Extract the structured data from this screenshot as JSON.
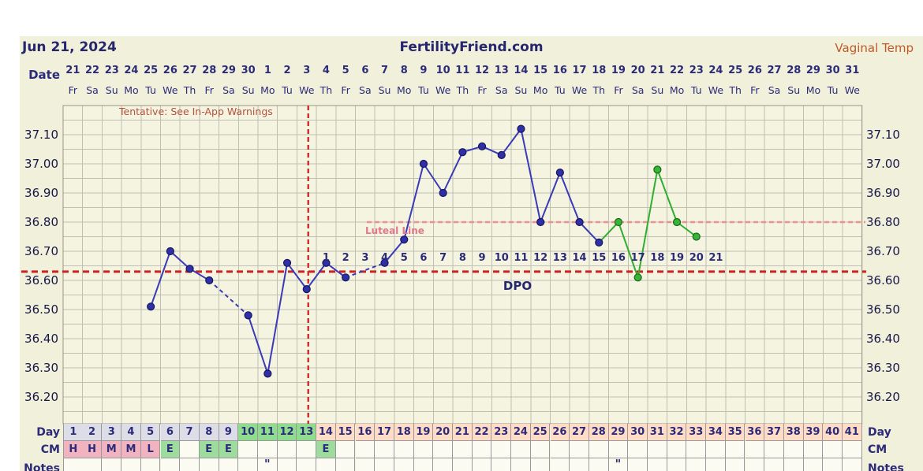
{
  "page": {
    "header": {
      "report_date": "Jun 21, 2024",
      "site_title": "FertilityFriend.com",
      "chart_type": "Vaginal Temp"
    },
    "labels": {
      "date_row": "Date",
      "day_row": "Day",
      "cm_row": "CM",
      "notes_row": "Notes",
      "dpo": "DPO",
      "tentative_warning": "Tentative: See In-App Warnings",
      "luteal_line": "Luteal Line"
    }
  },
  "colors": {
    "panel_bg": "#f1f0da",
    "plot_bg": "#f5f4e0",
    "grid": "#bfbfb3",
    "plot_border": "#999488",
    "navy_text": "#2b2b7a",
    "temp_line_blue": "#3a3ab8",
    "temp_dot_blue": "#2f2fa8",
    "temp_dot_blue_stroke": "#16165e",
    "temp_line_green": "#2fae2f",
    "temp_dot_green": "#38b438",
    "temp_dot_green_stroke": "#156815",
    "coverline_red": "#cc2222",
    "ovulation_line_red": "#cc3333",
    "luteal_line_pink": "#ee8f8f",
    "luteal_label_pink": "#e0788f",
    "tentative_red": "#b5503c",
    "type_label_orange": "#c05a28",
    "phase_pre_bg": "#dcdde7",
    "phase_fertile_bg": "#8fdc8f",
    "phase_luteal_bg": "#ffdcc6",
    "cm_menses_bg": "#f2b3c0",
    "cm_eggwhite_bg": "#9edc9e",
    "cell_empty_bg": "#fbfbf2",
    "cell_border": "#999999"
  },
  "chart_data": {
    "type": "line",
    "title": "Basal body temperature cycle chart",
    "ylim": [
      36.15,
      37.2
    ],
    "minor_step": 0.05,
    "y_axis": {
      "ticks": [
        "37.10",
        "37.00",
        "36.90",
        "36.80",
        "36.70",
        "36.60",
        "36.50",
        "36.40",
        "36.30",
        "36.20"
      ]
    },
    "x_axis": {
      "dates": [
        "21",
        "22",
        "23",
        "24",
        "25",
        "26",
        "27",
        "28",
        "29",
        "30",
        "1",
        "2",
        "3",
        "4",
        "5",
        "6",
        "7",
        "8",
        "9",
        "10",
        "11",
        "12",
        "13",
        "14",
        "15",
        "16",
        "17",
        "18",
        "19",
        "20",
        "21",
        "22",
        "23",
        "24",
        "25",
        "26",
        "27",
        "28",
        "29",
        "30",
        "31"
      ],
      "weekdays": [
        "Fr",
        "Sa",
        "Su",
        "Mo",
        "Tu",
        "We",
        "Th",
        "Fr",
        "Sa",
        "Su",
        "Mo",
        "Tu",
        "We",
        "Th",
        "Fr",
        "Sa",
        "Su",
        "Mo",
        "Tu",
        "We",
        "Th",
        "Fr",
        "Sa",
        "Su",
        "Mo",
        "Tu",
        "We",
        "Th",
        "Fr",
        "Sa",
        "Su",
        "Mo",
        "Tu",
        "We",
        "Th",
        "Fr",
        "Sa",
        "Su",
        "Mo",
        "Tu",
        "We"
      ],
      "cycle_days": [
        "1",
        "2",
        "3",
        "4",
        "5",
        "6",
        "7",
        "8",
        "9",
        "10",
        "11",
        "12",
        "13",
        "14",
        "15",
        "16",
        "17",
        "18",
        "19",
        "20",
        "21",
        "22",
        "23",
        "24",
        "25",
        "26",
        "27",
        "28",
        "29",
        "30",
        "31",
        "32",
        "33",
        "34",
        "35",
        "36",
        "37",
        "38",
        "39",
        "40",
        "41"
      ]
    },
    "temps": [
      {
        "day": 5,
        "temp": 36.51,
        "series": "blue"
      },
      {
        "day": 6,
        "temp": 36.7,
        "series": "blue"
      },
      {
        "day": 7,
        "temp": 36.64,
        "series": "blue"
      },
      {
        "day": 8,
        "temp": 36.6,
        "series": "blue"
      },
      {
        "day": 10,
        "temp": 36.48,
        "series": "blue"
      },
      {
        "day": 11,
        "temp": 36.28,
        "series": "blue"
      },
      {
        "day": 12,
        "temp": 36.66,
        "series": "blue"
      },
      {
        "day": 13,
        "temp": 36.57,
        "series": "blue"
      },
      {
        "day": 14,
        "temp": 36.66,
        "series": "blue"
      },
      {
        "day": 15,
        "temp": 36.61,
        "series": "blue"
      },
      {
        "day": 17,
        "temp": 36.66,
        "series": "blue"
      },
      {
        "day": 18,
        "temp": 36.74,
        "series": "blue"
      },
      {
        "day": 19,
        "temp": 37.0,
        "series": "blue"
      },
      {
        "day": 20,
        "temp": 36.9,
        "series": "blue"
      },
      {
        "day": 21,
        "temp": 37.04,
        "series": "blue"
      },
      {
        "day": 22,
        "temp": 37.06,
        "series": "blue"
      },
      {
        "day": 23,
        "temp": 37.03,
        "series": "blue"
      },
      {
        "day": 24,
        "temp": 37.12,
        "series": "blue"
      },
      {
        "day": 25,
        "temp": 36.8,
        "series": "blue"
      },
      {
        "day": 26,
        "temp": 36.97,
        "series": "blue"
      },
      {
        "day": 27,
        "temp": 36.8,
        "series": "blue"
      },
      {
        "day": 28,
        "temp": 36.73,
        "series": "blue"
      },
      {
        "day": 29,
        "temp": 36.8,
        "series": "green"
      },
      {
        "day": 30,
        "temp": 36.61,
        "series": "green"
      },
      {
        "day": 31,
        "temp": 36.98,
        "series": "green"
      },
      {
        "day": 32,
        "temp": 36.8,
        "series": "green"
      },
      {
        "day": 33,
        "temp": 36.75,
        "series": "green"
      }
    ],
    "coverline_temp": 36.63,
    "luteal_line_temp": 36.8,
    "ovulation_after_day": 13,
    "dpo": {
      "start_cycle_day": 14,
      "numbers": [
        "1",
        "2",
        "3",
        "4",
        "5",
        "6",
        "7",
        "8",
        "9",
        "10",
        "11",
        "12",
        "13",
        "14",
        "15",
        "16",
        "17",
        "18",
        "19",
        "20",
        "21"
      ]
    },
    "cm_row": [
      {
        "day": 1,
        "value": "H",
        "kind": "menses"
      },
      {
        "day": 2,
        "value": "H",
        "kind": "menses"
      },
      {
        "day": 3,
        "value": "M",
        "kind": "menses"
      },
      {
        "day": 4,
        "value": "M",
        "kind": "menses"
      },
      {
        "day": 5,
        "value": "L",
        "kind": "menses"
      },
      {
        "day": 6,
        "value": "E",
        "kind": "eggwhite"
      },
      {
        "day": 8,
        "value": "E",
        "kind": "eggwhite"
      },
      {
        "day": 9,
        "value": "E",
        "kind": "eggwhite"
      },
      {
        "day": 14,
        "value": "E",
        "kind": "eggwhite"
      }
    ],
    "day_phases": [
      {
        "from": 1,
        "to": 9,
        "phase": "pre"
      },
      {
        "from": 10,
        "to": 13,
        "phase": "fertile"
      },
      {
        "from": 14,
        "to": 41,
        "phase": "luteal"
      }
    ],
    "notes_marks": [
      {
        "day": 11,
        "text": "\""
      },
      {
        "day": 29,
        "text": "\""
      }
    ]
  }
}
